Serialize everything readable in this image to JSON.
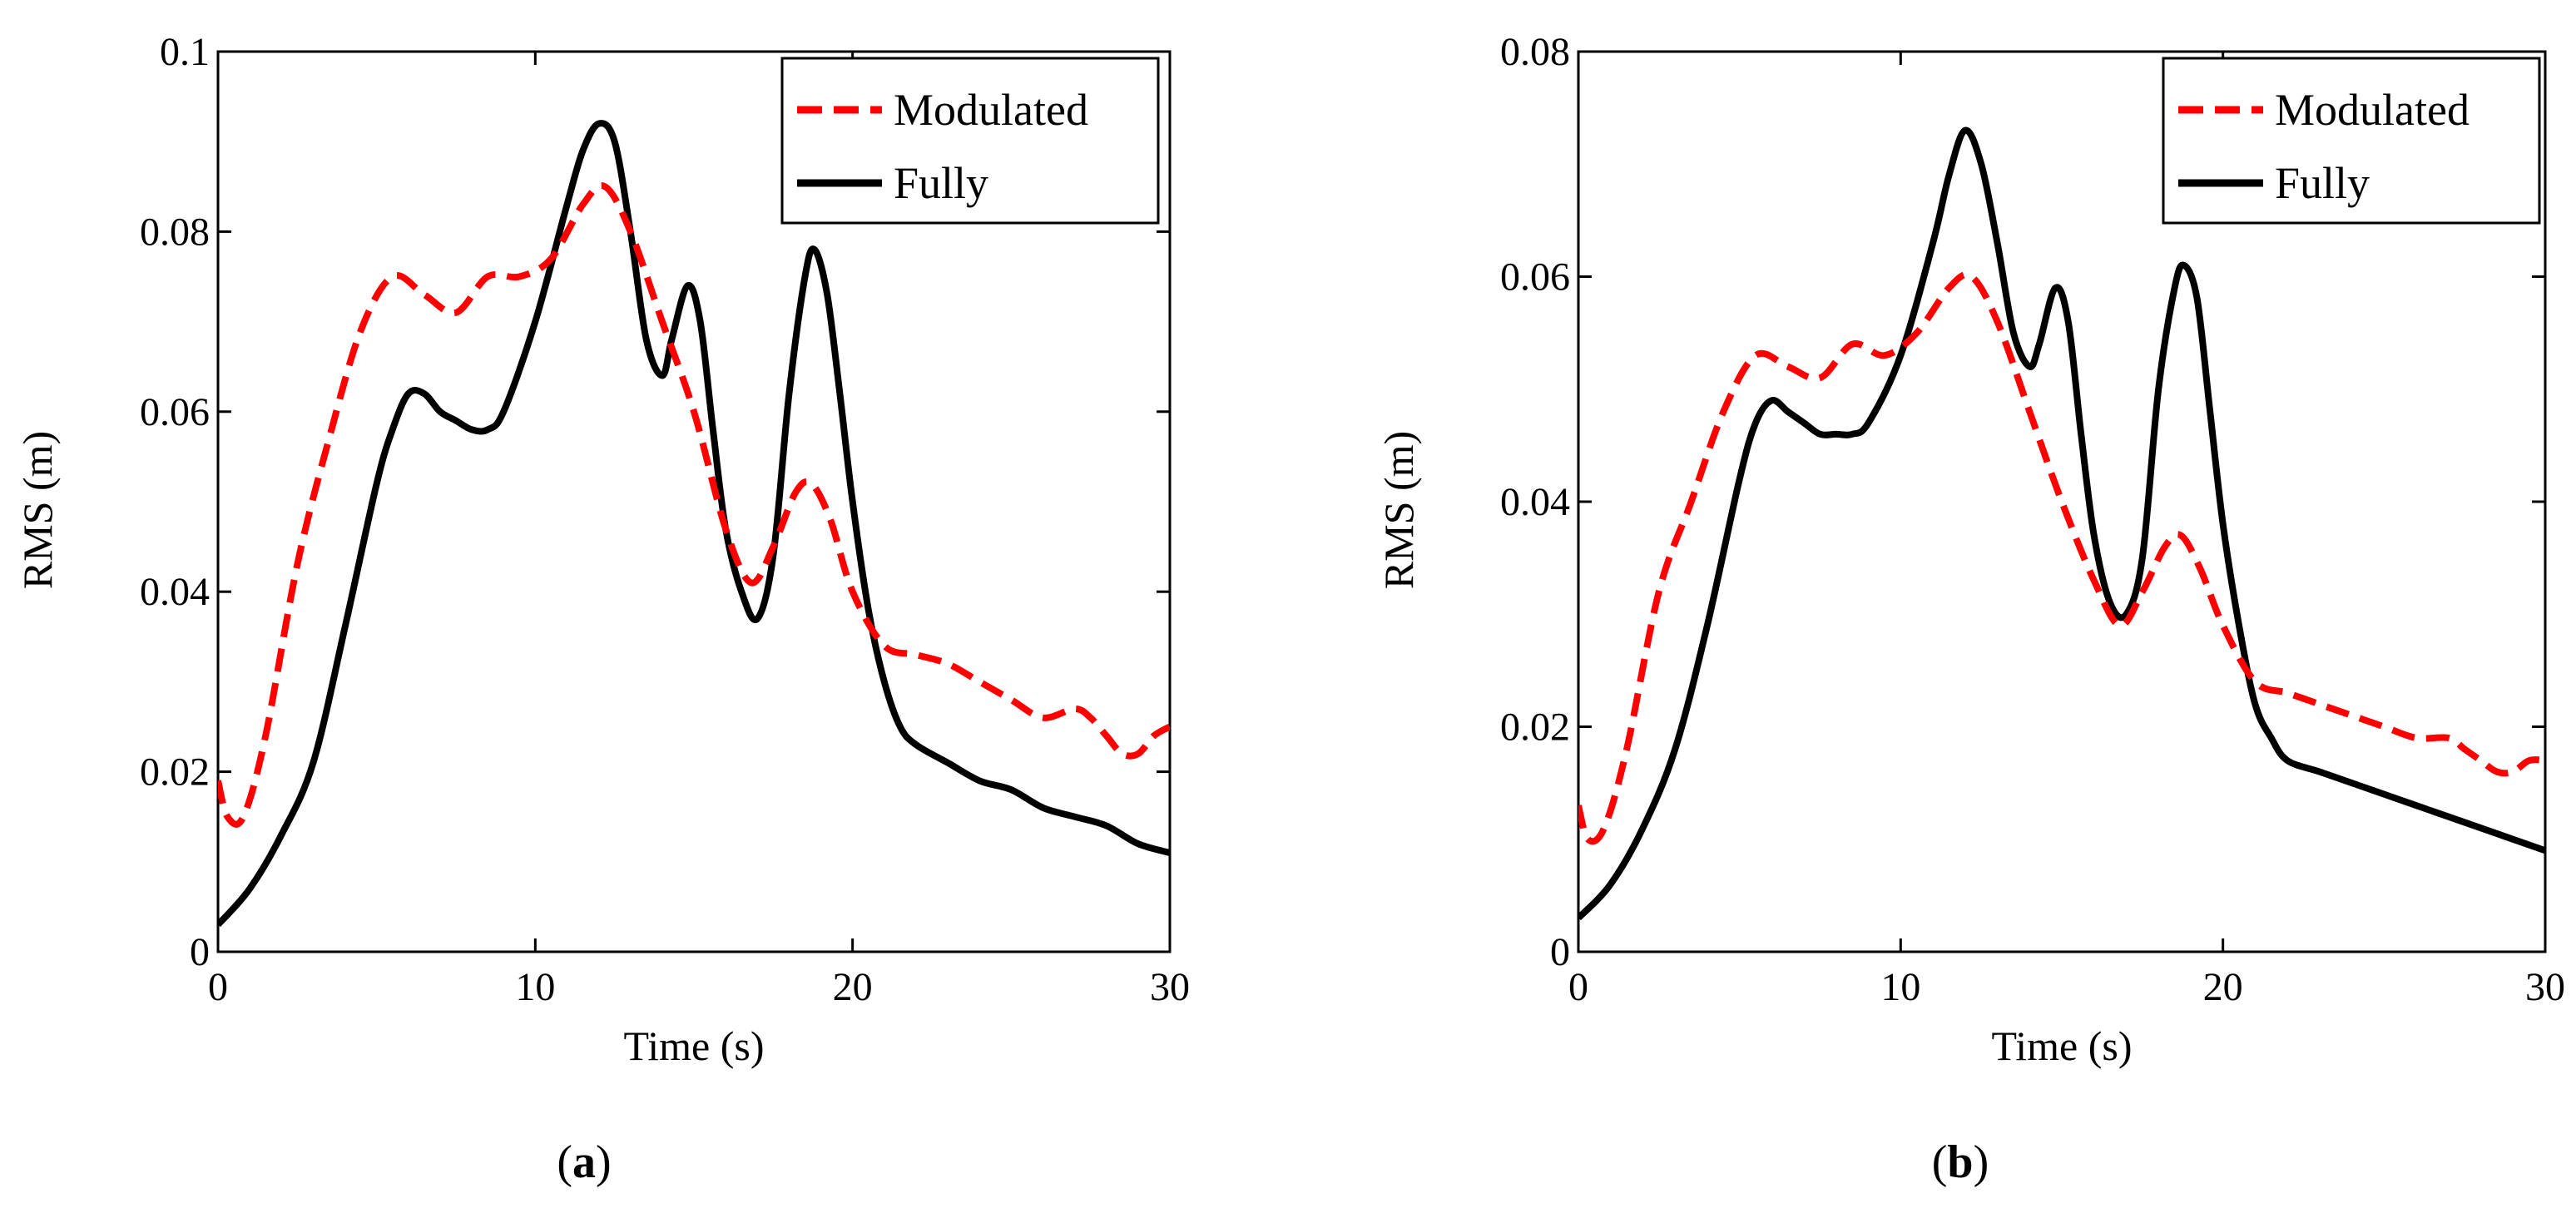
{
  "chart_data": [
    {
      "type": "line",
      "panel_label": "a",
      "xlabel": "Time (s)",
      "ylabel": "RMS (m)",
      "xlim": [
        0,
        30
      ],
      "ylim": [
        0,
        0.1
      ],
      "xticks": [
        0,
        10,
        20,
        30
      ],
      "xtick_labels": [
        "0",
        "10",
        "20",
        "30"
      ],
      "yticks": [
        0,
        0.02,
        0.04,
        0.06,
        0.08,
        0.1
      ],
      "ytick_labels": [
        "0",
        "0.02",
        "0.04",
        "0.06",
        "0.08",
        "0.1"
      ],
      "legend_position": "top-right",
      "grid": false,
      "series": [
        {
          "name": "Modulated",
          "color": "#ff0000",
          "style": "dashed",
          "x": [
            0,
            0.3,
            0.8,
            1.5,
            2.5,
            3.5,
            4.5,
            5.5,
            6.5,
            7.5,
            8.5,
            9.5,
            10.5,
            11.5,
            12.2,
            13,
            14,
            15,
            16,
            16.8,
            17.5,
            18.2,
            18.7,
            19.3,
            20,
            21,
            22,
            23,
            24,
            25,
            26,
            27,
            27.5,
            28,
            28.5,
            29,
            29.5,
            30
          ],
          "values": [
            0.019,
            0.015,
            0.015,
            0.024,
            0.043,
            0.057,
            0.069,
            0.075,
            0.073,
            0.071,
            0.075,
            0.075,
            0.077,
            0.083,
            0.085,
            0.08,
            0.07,
            0.06,
            0.047,
            0.041,
            0.045,
            0.051,
            0.052,
            0.048,
            0.04,
            0.034,
            0.033,
            0.032,
            0.03,
            0.028,
            0.026,
            0.027,
            0.026,
            0.024,
            0.022,
            0.022,
            0.024,
            0.025
          ]
        },
        {
          "name": "Fully",
          "color": "#000000",
          "style": "solid",
          "x": [
            0,
            1,
            2,
            3,
            4,
            5,
            5.5,
            6,
            6.5,
            7,
            7.5,
            8,
            8.5,
            9,
            10,
            11,
            11.5,
            12,
            12.5,
            13,
            13.5,
            14,
            14.3,
            14.8,
            15.2,
            15.6,
            16,
            16.5,
            17,
            17.5,
            18,
            18.5,
            18.8,
            19.2,
            19.6,
            20,
            20.5,
            21,
            21.5,
            22,
            23,
            24,
            25,
            26,
            27,
            28,
            29,
            30
          ],
          "values": [
            0.003,
            0.007,
            0.013,
            0.021,
            0.036,
            0.052,
            0.058,
            0.062,
            0.062,
            0.06,
            0.059,
            0.058,
            0.058,
            0.06,
            0.07,
            0.083,
            0.089,
            0.092,
            0.09,
            0.08,
            0.068,
            0.064,
            0.068,
            0.074,
            0.07,
            0.058,
            0.047,
            0.04,
            0.037,
            0.044,
            0.062,
            0.075,
            0.078,
            0.073,
            0.062,
            0.05,
            0.038,
            0.03,
            0.025,
            0.023,
            0.021,
            0.019,
            0.018,
            0.016,
            0.015,
            0.014,
            0.012,
            0.011
          ]
        }
      ]
    },
    {
      "type": "line",
      "panel_label": "b",
      "xlabel": "Time (s)",
      "ylabel": "RMS (m)",
      "xlim": [
        0,
        30
      ],
      "ylim": [
        0,
        0.08
      ],
      "xticks": [
        0,
        10,
        20,
        30
      ],
      "xtick_labels": [
        "0",
        "10",
        "20",
        "30"
      ],
      "yticks": [
        0,
        0.02,
        0.04,
        0.06,
        0.08
      ],
      "ytick_labels": [
        "0",
        "0.02",
        "0.04",
        "0.06",
        "0.08"
      ],
      "legend_position": "top-right",
      "grid": false,
      "series": [
        {
          "name": "Modulated",
          "color": "#ff0000",
          "style": "dashed",
          "x": [
            0,
            0.3,
            0.8,
            1.5,
            2.5,
            3.5,
            4.5,
            5.5,
            6.5,
            7.5,
            8.5,
            9.5,
            10.5,
            11.5,
            12.2,
            13,
            14,
            15,
            16,
            16.8,
            17.5,
            18.2,
            18.7,
            19.3,
            20,
            21,
            22,
            23,
            24,
            25,
            26,
            27,
            27.5,
            28,
            28.5,
            29,
            29.5,
            30
          ],
          "values": [
            0.013,
            0.01,
            0.011,
            0.018,
            0.032,
            0.04,
            0.048,
            0.053,
            0.052,
            0.051,
            0.054,
            0.053,
            0.055,
            0.059,
            0.06,
            0.056,
            0.048,
            0.04,
            0.033,
            0.029,
            0.032,
            0.036,
            0.037,
            0.034,
            0.029,
            0.024,
            0.023,
            0.022,
            0.021,
            0.02,
            0.019,
            0.019,
            0.018,
            0.017,
            0.016,
            0.016,
            0.017,
            0.017
          ]
        },
        {
          "name": "Fully",
          "color": "#000000",
          "style": "solid",
          "x": [
            0,
            1,
            2,
            3,
            4,
            5,
            5.5,
            6,
            6.5,
            7,
            7.5,
            8,
            8.5,
            9,
            10,
            11,
            11.5,
            12,
            12.5,
            13,
            13.5,
            14,
            14.3,
            14.8,
            15.2,
            15.6,
            16,
            16.5,
            17,
            17.5,
            18,
            18.5,
            18.8,
            19.2,
            19.6,
            20,
            20.5,
            21,
            21.5,
            22,
            23,
            24,
            25,
            26,
            27,
            28,
            29,
            30
          ],
          "values": [
            0.003,
            0.006,
            0.011,
            0.018,
            0.029,
            0.042,
            0.047,
            0.049,
            0.048,
            0.047,
            0.046,
            0.046,
            0.046,
            0.047,
            0.053,
            0.063,
            0.069,
            0.073,
            0.07,
            0.063,
            0.055,
            0.052,
            0.054,
            0.059,
            0.056,
            0.046,
            0.037,
            0.031,
            0.03,
            0.035,
            0.05,
            0.059,
            0.061,
            0.058,
            0.048,
            0.038,
            0.029,
            0.022,
            0.019,
            0.017,
            0.016,
            0.015,
            0.014,
            0.013,
            0.012,
            0.011,
            0.01,
            0.009
          ]
        }
      ]
    }
  ]
}
